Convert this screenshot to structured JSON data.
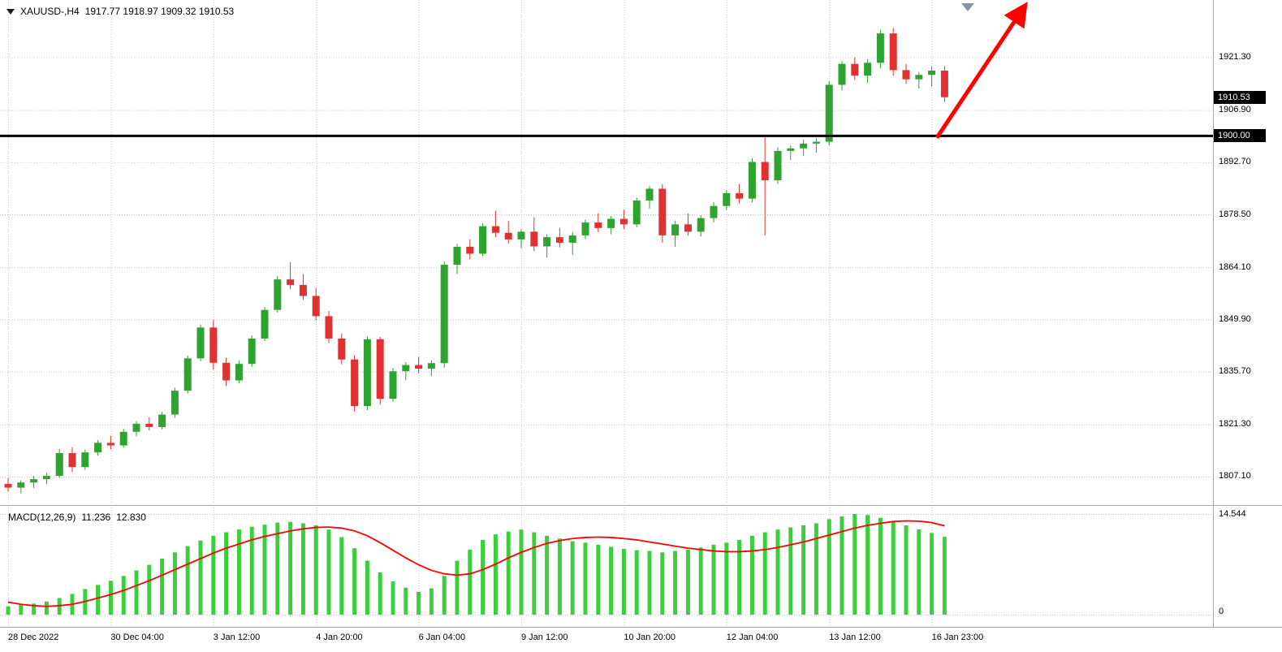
{
  "header": {
    "symbol_period": "XAUUSD-,H4",
    "ohlc": "1917.77 1918.97 1909.32 1910.53"
  },
  "indicator_label": {
    "name": "MACD(12,26,9)",
    "value_main": "11.236",
    "value_signal": "12.830"
  },
  "price_axis": {
    "labels": [
      {
        "text": "1921.30",
        "value": 1921.3
      },
      {
        "text": "1906.90",
        "value": 1906.9
      },
      {
        "text": "1892.70",
        "value": 1892.7
      },
      {
        "text": "1878.50",
        "value": 1878.5
      },
      {
        "text": "1864.10",
        "value": 1864.1
      },
      {
        "text": "1849.90",
        "value": 1849.9
      },
      {
        "text": "1835.70",
        "value": 1835.7
      },
      {
        "text": "1821.30",
        "value": 1821.3
      },
      {
        "text": "1807.10",
        "value": 1807.1
      }
    ],
    "current_price_badge": "1910.53",
    "hline_badge": "1900.00"
  },
  "macd_axis": {
    "max_label": "14.544",
    "zero_label": "0"
  },
  "colors": {
    "bull": "#2fa32f",
    "bear": "#e03232",
    "macd_bar": "#3ccf3c",
    "signal_line": "#ff0000",
    "grid": "#c9c9c9",
    "hline": "#000000",
    "arrow": "#ff0000",
    "badge_bg": "#000000",
    "badge_text": "#ffffff"
  },
  "chart_data": {
    "type": "candlestick",
    "symbol": "XAUUSD-",
    "timeframe": "H4",
    "price_ylim": [
      1799.9,
      1937.0
    ],
    "grid": true,
    "hline": 1900.0,
    "current_price": 1910.53,
    "ohlc_current": {
      "open": 1917.77,
      "high": 1918.97,
      "low": 1909.32,
      "close": 1910.53
    },
    "time_labels": [
      {
        "i": 0,
        "t": "28 Dec 2022"
      },
      {
        "i": 8,
        "t": "30 Dec 04:00"
      },
      {
        "i": 16,
        "t": "3 Jan 12:00"
      },
      {
        "i": 24,
        "t": "4 Jan 20:00"
      },
      {
        "i": 32,
        "t": "6 Jan 04:00"
      },
      {
        "i": 40,
        "t": "9 Jan 12:00"
      },
      {
        "i": 48,
        "t": "10 Jan 20:00"
      },
      {
        "i": 56,
        "t": "12 Jan 04:00"
      },
      {
        "i": 64,
        "t": "13 Jan 12:00"
      },
      {
        "i": 72,
        "t": "16 Jan 23:00"
      }
    ],
    "candles_ohlc": [
      [
        1805.2,
        1806.8,
        1803.1,
        1804.2
      ],
      [
        1804.2,
        1806.2,
        1802.6,
        1805.6
      ],
      [
        1805.6,
        1807.4,
        1804.1,
        1806.5
      ],
      [
        1806.5,
        1808.2,
        1805.2,
        1807.4
      ],
      [
        1807.4,
        1814.8,
        1806.9,
        1813.6
      ],
      [
        1813.6,
        1815.2,
        1808.4,
        1809.8
      ],
      [
        1809.8,
        1814.6,
        1809.1,
        1813.8
      ],
      [
        1813.8,
        1817.2,
        1812.9,
        1816.4
      ],
      [
        1816.4,
        1818.3,
        1814.6,
        1815.7
      ],
      [
        1815.7,
        1820.2,
        1815.1,
        1819.4
      ],
      [
        1819.4,
        1822.3,
        1818.2,
        1821.6
      ],
      [
        1821.6,
        1823.4,
        1819.8,
        1820.7
      ],
      [
        1820.7,
        1824.8,
        1820.1,
        1824.1
      ],
      [
        1824.1,
        1831.4,
        1823.2,
        1830.6
      ],
      [
        1830.6,
        1840.2,
        1829.8,
        1839.4
      ],
      [
        1839.4,
        1848.6,
        1838.6,
        1847.8
      ],
      [
        1847.8,
        1849.9,
        1836.4,
        1838.2
      ],
      [
        1838.2,
        1839.6,
        1831.9,
        1833.4
      ],
      [
        1833.4,
        1838.8,
        1832.6,
        1837.9
      ],
      [
        1837.9,
        1845.6,
        1837.1,
        1844.8
      ],
      [
        1844.8,
        1853.4,
        1844.1,
        1852.6
      ],
      [
        1852.6,
        1861.8,
        1851.9,
        1860.9
      ],
      [
        1860.9,
        1865.6,
        1858.2,
        1859.4
      ],
      [
        1859.4,
        1862.4,
        1855.3,
        1856.4
      ],
      [
        1856.4,
        1858.6,
        1849.8,
        1850.9
      ],
      [
        1850.9,
        1852.3,
        1843.6,
        1844.8
      ],
      [
        1844.8,
        1846.2,
        1837.8,
        1839.1
      ],
      [
        1839.1,
        1840.3,
        1824.9,
        1826.4
      ],
      [
        1826.4,
        1845.4,
        1825.3,
        1844.6
      ],
      [
        1844.6,
        1845.2,
        1826.8,
        1828.4
      ],
      [
        1828.4,
        1836.8,
        1827.6,
        1835.9
      ],
      [
        1835.9,
        1838.4,
        1833.4,
        1837.6
      ],
      [
        1837.6,
        1839.8,
        1835.4,
        1836.6
      ],
      [
        1836.6,
        1838.9,
        1834.6,
        1838.1
      ],
      [
        1838.1,
        1865.8,
        1836.9,
        1864.9
      ],
      [
        1864.9,
        1870.6,
        1862.3,
        1869.8
      ],
      [
        1869.8,
        1871.8,
        1866.4,
        1867.9
      ],
      [
        1867.9,
        1876.2,
        1867.2,
        1875.4
      ],
      [
        1875.4,
        1879.6,
        1872.4,
        1873.6
      ],
      [
        1873.6,
        1876.8,
        1870.6,
        1871.8
      ],
      [
        1871.8,
        1874.6,
        1869.4,
        1873.9
      ],
      [
        1873.9,
        1877.8,
        1868.6,
        1869.9
      ],
      [
        1869.9,
        1873.2,
        1866.8,
        1872.4
      ],
      [
        1872.4,
        1874.9,
        1869.6,
        1870.9
      ],
      [
        1870.9,
        1873.8,
        1867.6,
        1872.9
      ],
      [
        1872.9,
        1877.2,
        1871.9,
        1876.4
      ],
      [
        1876.4,
        1878.9,
        1873.8,
        1874.9
      ],
      [
        1874.9,
        1878.2,
        1873.2,
        1877.4
      ],
      [
        1877.4,
        1879.9,
        1874.6,
        1875.9
      ],
      [
        1875.9,
        1883.2,
        1875.1,
        1882.4
      ],
      [
        1882.4,
        1886.4,
        1880.2,
        1885.6
      ],
      [
        1885.6,
        1886.9,
        1870.9,
        1872.9
      ],
      [
        1872.9,
        1876.9,
        1869.8,
        1875.9
      ],
      [
        1875.9,
        1878.9,
        1872.8,
        1873.9
      ],
      [
        1873.9,
        1878.4,
        1872.6,
        1877.6
      ],
      [
        1877.6,
        1881.9,
        1876.4,
        1880.9
      ],
      [
        1880.9,
        1885.2,
        1879.8,
        1884.4
      ],
      [
        1884.4,
        1886.9,
        1881.6,
        1882.9
      ],
      [
        1882.9,
        1893.9,
        1881.9,
        1892.9
      ],
      [
        1892.9,
        1899.6,
        1872.9,
        1887.9
      ],
      [
        1887.9,
        1896.9,
        1886.9,
        1895.9
      ],
      [
        1895.9,
        1897.4,
        1893.4,
        1896.6
      ],
      [
        1896.6,
        1898.9,
        1894.6,
        1897.9
      ],
      [
        1897.9,
        1899.4,
        1895.4,
        1898.4
      ],
      [
        1898.4,
        1914.9,
        1897.4,
        1913.9
      ],
      [
        1913.9,
        1920.4,
        1912.4,
        1919.6
      ],
      [
        1919.6,
        1921.4,
        1915.2,
        1916.4
      ],
      [
        1916.4,
        1920.9,
        1914.4,
        1919.9
      ],
      [
        1919.9,
        1928.9,
        1918.4,
        1927.9
      ],
      [
        1927.9,
        1929.4,
        1916.4,
        1917.9
      ],
      [
        1917.9,
        1919.6,
        1914.2,
        1915.4
      ],
      [
        1915.4,
        1917.4,
        1912.9,
        1916.6
      ],
      [
        1916.6,
        1918.9,
        1913.4,
        1917.77
      ],
      [
        1917.77,
        1918.97,
        1909.32,
        1910.53
      ]
    ],
    "macd": {
      "ylim": [
        0,
        14.544
      ],
      "histogram": [
        1.2,
        1.4,
        1.6,
        1.9,
        2.4,
        3.0,
        3.7,
        4.3,
        4.9,
        5.6,
        6.4,
        7.2,
        8.1,
        9.0,
        9.9,
        10.7,
        11.4,
        11.9,
        12.3,
        12.7,
        13.0,
        13.3,
        13.4,
        13.2,
        12.9,
        12.3,
        11.2,
        9.6,
        7.8,
        6.1,
        4.8,
        3.9,
        3.3,
        3.8,
        5.6,
        7.8,
        9.4,
        10.8,
        11.6,
        12.0,
        12.3,
        11.9,
        11.4,
        11.0,
        10.6,
        10.4,
        10.1,
        9.8,
        9.5,
        9.3,
        9.2,
        9.0,
        9.2,
        9.4,
        9.7,
        10.1,
        10.4,
        10.8,
        11.4,
        11.9,
        12.3,
        12.6,
        12.9,
        13.2,
        13.8,
        14.2,
        14.544,
        14.4,
        14.0,
        13.5,
        12.9,
        12.3,
        11.8,
        11.236
      ],
      "signal": [
        1.8,
        1.5,
        1.3,
        1.2,
        1.3,
        1.5,
        1.9,
        2.4,
        2.9,
        3.5,
        4.2,
        4.9,
        5.7,
        6.5,
        7.3,
        8.1,
        8.9,
        9.6,
        10.2,
        10.8,
        11.3,
        11.7,
        12.1,
        12.4,
        12.6,
        12.65,
        12.5,
        12.1,
        11.4,
        10.4,
        9.3,
        8.2,
        7.2,
        6.4,
        5.9,
        5.7,
        5.9,
        6.5,
        7.3,
        8.2,
        9.0,
        9.7,
        10.3,
        10.7,
        11.0,
        11.15,
        11.2,
        11.15,
        11.0,
        10.8,
        10.5,
        10.2,
        9.9,
        9.6,
        9.4,
        9.2,
        9.1,
        9.1,
        9.2,
        9.4,
        9.7,
        10.1,
        10.5,
        11.0,
        11.5,
        12.0,
        12.5,
        12.9,
        13.2,
        13.45,
        13.55,
        13.5,
        13.3,
        12.83
      ]
    },
    "trend_arrow": {
      "from_candle": 72.4,
      "from_price": 1899.5,
      "to_candle": 79.3,
      "to_price": 1935.6
    }
  }
}
